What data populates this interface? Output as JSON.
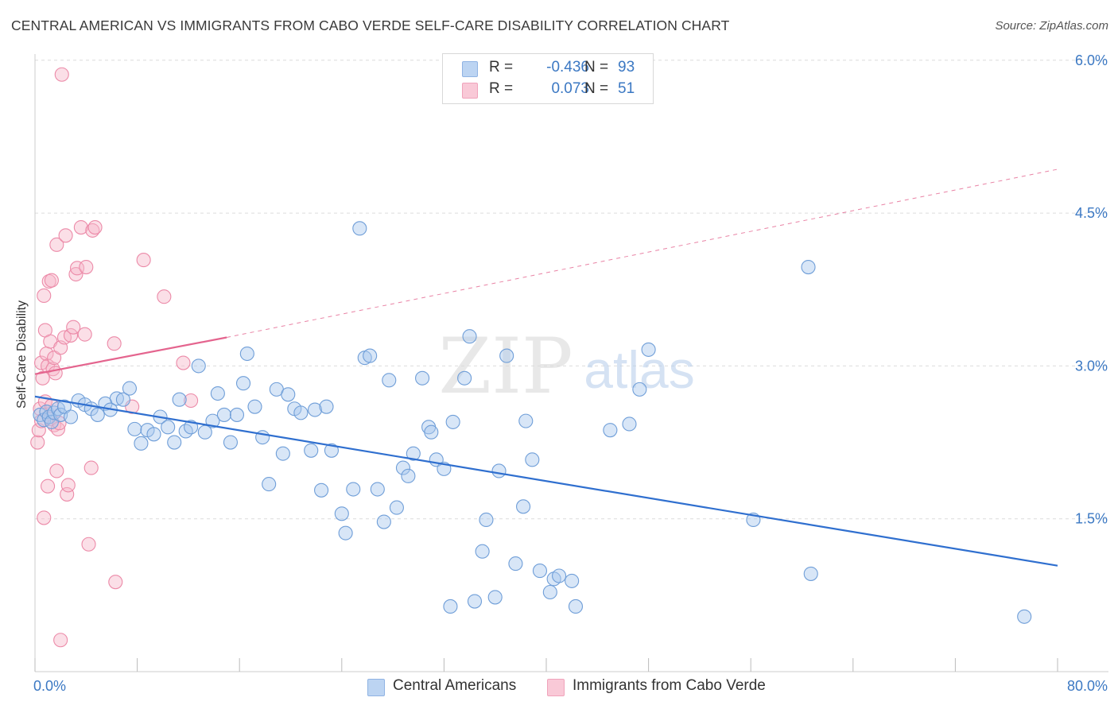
{
  "title": "CENTRAL AMERICAN VS IMMIGRANTS FROM CABO VERDE SELF-CARE DISABILITY CORRELATION CHART",
  "source": "Source: ZipAtlas.com",
  "legend": {
    "r_label": "R =",
    "n_label": "N =",
    "rows": [
      {
        "r_value": "-0.436",
        "n_value": "93"
      },
      {
        "r_value": "0.073",
        "n_value": "51"
      }
    ]
  },
  "bottom_legend": [
    "Central Americans",
    "Immigrants from Cabo Verde"
  ],
  "watermark": {
    "zip": "ZIP",
    "atlas": "atlas"
  },
  "colors": {
    "blue_fill": "#a9c8ee",
    "blue_stroke": "#6f9ed8",
    "blue_line": "#2f6fcf",
    "pink_fill": "#f7b7ca",
    "pink_stroke": "#ec8aa8",
    "pink_line": "#e4648e",
    "tick_text": "#3b78c3"
  },
  "chart_data": {
    "type": "scatter",
    "title": "CENTRAL AMERICAN VS IMMIGRANTS FROM CABO VERDE SELF-CARE DISABILITY CORRELATION CHART",
    "xlabel": "",
    "ylabel": "Self-Care Disability",
    "xlim": [
      0,
      80
    ],
    "ylim": [
      0,
      6.25
    ],
    "x_tick_labels": [
      "0.0%",
      "80.0%"
    ],
    "y_ticks": [
      1.5,
      3.0,
      4.5,
      6.0
    ],
    "y_tick_labels": [
      "1.5%",
      "3.0%",
      "4.5%",
      "6.0%"
    ],
    "grid": "horizontal dashed",
    "legend_position": "top-center",
    "series": [
      {
        "name": "Central Americans",
        "r": -0.436,
        "n": 93,
        "trend": {
          "x": [
            0,
            80
          ],
          "y": [
            2.7,
            1.04
          ]
        },
        "points": [
          [
            0.4,
            2.52
          ],
          [
            0.7,
            2.47
          ],
          [
            0.9,
            2.55
          ],
          [
            1.1,
            2.5
          ],
          [
            1.3,
            2.45
          ],
          [
            1.5,
            2.54
          ],
          [
            1.8,
            2.58
          ],
          [
            2.0,
            2.52
          ],
          [
            2.3,
            2.6
          ],
          [
            2.8,
            2.5
          ],
          [
            3.4,
            2.66
          ],
          [
            3.9,
            2.62
          ],
          [
            4.4,
            2.58
          ],
          [
            4.9,
            2.52
          ],
          [
            5.5,
            2.63
          ],
          [
            5.9,
            2.57
          ],
          [
            6.4,
            2.68
          ],
          [
            6.9,
            2.67
          ],
          [
            7.4,
            2.78
          ],
          [
            7.8,
            2.38
          ],
          [
            8.3,
            2.24
          ],
          [
            8.8,
            2.37
          ],
          [
            9.3,
            2.33
          ],
          [
            9.8,
            2.5
          ],
          [
            10.4,
            2.4
          ],
          [
            10.9,
            2.25
          ],
          [
            11.3,
            2.67
          ],
          [
            11.8,
            2.36
          ],
          [
            12.2,
            2.4
          ],
          [
            12.8,
            3.0
          ],
          [
            13.3,
            2.35
          ],
          [
            13.9,
            2.46
          ],
          [
            14.3,
            2.73
          ],
          [
            14.8,
            2.52
          ],
          [
            15.3,
            2.25
          ],
          [
            15.8,
            2.52
          ],
          [
            16.3,
            2.83
          ],
          [
            16.6,
            3.12
          ],
          [
            17.2,
            2.6
          ],
          [
            17.8,
            2.3
          ],
          [
            18.3,
            1.84
          ],
          [
            18.9,
            2.77
          ],
          [
            19.4,
            2.14
          ],
          [
            19.8,
            2.72
          ],
          [
            20.3,
            2.58
          ],
          [
            20.8,
            2.54
          ],
          [
            21.6,
            2.17
          ],
          [
            21.9,
            2.57
          ],
          [
            22.4,
            1.78
          ],
          [
            22.8,
            2.6
          ],
          [
            23.2,
            2.17
          ],
          [
            24.0,
            1.55
          ],
          [
            24.3,
            1.36
          ],
          [
            24.9,
            1.79
          ],
          [
            25.4,
            4.35
          ],
          [
            25.8,
            3.08
          ],
          [
            26.2,
            3.1
          ],
          [
            26.8,
            1.79
          ],
          [
            27.3,
            1.47
          ],
          [
            27.7,
            2.86
          ],
          [
            28.3,
            1.61
          ],
          [
            28.8,
            2.0
          ],
          [
            29.2,
            1.92
          ],
          [
            29.6,
            2.14
          ],
          [
            30.3,
            2.88
          ],
          [
            30.8,
            2.4
          ],
          [
            31.0,
            2.35
          ],
          [
            31.4,
            2.08
          ],
          [
            32.0,
            1.99
          ],
          [
            32.5,
            0.64
          ],
          [
            32.7,
            2.45
          ],
          [
            33.6,
            2.88
          ],
          [
            34.0,
            3.29
          ],
          [
            34.4,
            0.69
          ],
          [
            35.0,
            1.18
          ],
          [
            35.3,
            1.49
          ],
          [
            36.0,
            0.73
          ],
          [
            36.3,
            1.97
          ],
          [
            36.9,
            3.1
          ],
          [
            37.6,
            1.06
          ],
          [
            38.2,
            1.62
          ],
          [
            38.4,
            2.46
          ],
          [
            38.9,
            2.08
          ],
          [
            39.5,
            0.99
          ],
          [
            40.3,
            0.78
          ],
          [
            40.6,
            0.91
          ],
          [
            41.0,
            0.94
          ],
          [
            42.0,
            0.89
          ],
          [
            42.3,
            0.64
          ],
          [
            45.0,
            2.37
          ],
          [
            46.5,
            2.43
          ],
          [
            47.3,
            2.77
          ],
          [
            48.0,
            3.16
          ],
          [
            56.2,
            1.49
          ],
          [
            60.5,
            3.97
          ],
          [
            60.7,
            0.96
          ],
          [
            77.4,
            0.54
          ]
        ]
      },
      {
        "name": "Immigrants from Cabo Verde",
        "r": 0.073,
        "n": 51,
        "trend": {
          "x": [
            0,
            15
          ],
          "y": [
            2.92,
            3.28
          ]
        },
        "trend_dashed": {
          "x": [
            15,
            80
          ],
          "y": [
            3.28,
            4.93
          ]
        },
        "points": [
          [
            0.2,
            2.25
          ],
          [
            0.3,
            2.37
          ],
          [
            0.4,
            2.58
          ],
          [
            0.5,
            2.46
          ],
          [
            0.5,
            3.03
          ],
          [
            0.6,
            2.88
          ],
          [
            0.7,
            3.69
          ],
          [
            0.7,
            1.51
          ],
          [
            0.8,
            2.65
          ],
          [
            0.8,
            3.35
          ],
          [
            0.9,
            3.12
          ],
          [
            1.0,
            3.0
          ],
          [
            1.0,
            1.82
          ],
          [
            1.1,
            3.83
          ],
          [
            1.2,
            3.24
          ],
          [
            1.2,
            2.48
          ],
          [
            1.3,
            3.84
          ],
          [
            1.3,
            2.61
          ],
          [
            1.4,
            2.97
          ],
          [
            1.5,
            3.08
          ],
          [
            1.5,
            2.42
          ],
          [
            1.6,
            2.93
          ],
          [
            1.7,
            4.19
          ],
          [
            1.7,
            1.97
          ],
          [
            1.8,
            2.38
          ],
          [
            1.9,
            2.44
          ],
          [
            2.0,
            0.31
          ],
          [
            2.0,
            3.18
          ],
          [
            2.1,
            5.86
          ],
          [
            2.3,
            3.28
          ],
          [
            2.4,
            4.28
          ],
          [
            2.5,
            1.74
          ],
          [
            2.6,
            1.83
          ],
          [
            2.8,
            3.3
          ],
          [
            3.0,
            3.38
          ],
          [
            3.2,
            3.9
          ],
          [
            3.3,
            3.96
          ],
          [
            3.6,
            4.36
          ],
          [
            3.9,
            3.31
          ],
          [
            4.0,
            3.97
          ],
          [
            4.2,
            1.25
          ],
          [
            4.4,
            2.0
          ],
          [
            4.5,
            4.33
          ],
          [
            4.7,
            4.36
          ],
          [
            6.2,
            3.22
          ],
          [
            6.3,
            0.88
          ],
          [
            7.6,
            2.6
          ],
          [
            8.5,
            4.04
          ],
          [
            10.1,
            3.68
          ],
          [
            11.6,
            3.03
          ],
          [
            12.2,
            2.66
          ]
        ]
      }
    ]
  }
}
